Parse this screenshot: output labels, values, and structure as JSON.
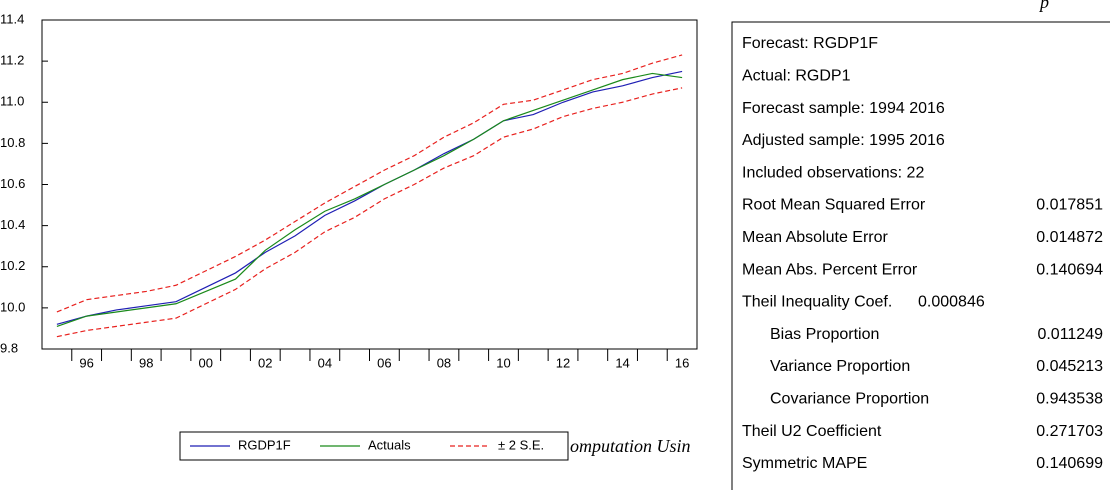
{
  "chart_data": {
    "type": "line",
    "categories": [
      null,
      "96",
      null,
      "98",
      null,
      "00",
      null,
      "02",
      null,
      "04",
      null,
      "06",
      null,
      "08",
      null,
      "10",
      null,
      "12",
      null,
      "14",
      null,
      "16"
    ],
    "ylim": [
      9.8,
      11.4
    ],
    "yticks": [
      9.8,
      {
        "value": 10,
        "label": "10.0"
      },
      10.2,
      10.4,
      10.6,
      10.8,
      {
        "value": 11,
        "label": "11.0"
      },
      11.2,
      11.4
    ],
    "series": [
      {
        "name": "RGDP1F",
        "color": "#1f1fb4",
        "values": [
          9.92,
          9.96,
          9.99,
          10.01,
          10.03,
          10.1,
          10.17,
          10.27,
          10.35,
          10.45,
          10.52,
          10.6,
          10.67,
          10.75,
          10.82,
          10.91,
          10.94,
          11.0,
          11.05,
          11.08,
          11.12,
          11.15
        ]
      },
      {
        "name": "Actuals",
        "color": "#1a8a1a",
        "values": [
          9.91,
          9.96,
          9.98,
          10.0,
          10.02,
          10.08,
          10.14,
          10.28,
          10.38,
          10.47,
          10.53,
          10.6,
          10.67,
          10.74,
          10.82,
          10.91,
          10.96,
          11.01,
          11.06,
          11.11,
          11.14,
          11.12
        ]
      },
      {
        "name": "± 2 S.E.",
        "color": "#e8211e",
        "dashed": true,
        "values": [
          9.98,
          10.04,
          10.06,
          10.08,
          10.11,
          10.18,
          10.25,
          10.33,
          10.42,
          10.51,
          10.59,
          10.67,
          10.74,
          10.83,
          10.9,
          10.99,
          11.01,
          11.06,
          11.11,
          11.14,
          11.19,
          11.23
        ],
        "lower_values": [
          9.86,
          9.89,
          9.91,
          9.93,
          9.95,
          10.02,
          10.09,
          10.19,
          10.27,
          10.37,
          10.44,
          10.53,
          10.6,
          10.68,
          10.74,
          10.83,
          10.87,
          10.93,
          10.97,
          11.0,
          11.04,
          11.07
        ]
      }
    ]
  },
  "stats_panel": {
    "rows": [
      [
        "Forecast: RGDP1F"
      ],
      [
        "Actual: RGDP1"
      ],
      [
        "Forecast sample: 1994 2016"
      ],
      [
        "Adjusted sample: 1995 2016"
      ],
      [
        "Included observations: 22"
      ],
      [
        "Root Mean Squared Error",
        "0.017851"
      ],
      [
        "Mean Absolute Error",
        "0.014872"
      ],
      [
        "Mean Abs. Percent Error",
        "0.140694"
      ],
      [
        "Theil Inequality Coef.",
        "0.000846"
      ],
      [
        "Bias Proportion",
        "0.011249"
      ],
      [
        "Variance Proportion",
        "0.045213"
      ],
      [
        "Covariance Proportion",
        "0.943538"
      ],
      [
        "Theil U2 Coefficient",
        "0.271703"
      ],
      [
        "Symmetric MAPE",
        "0.140699"
      ]
    ]
  },
  "caption_fragment": "omputation Usin",
  "heading_fragment": "p"
}
